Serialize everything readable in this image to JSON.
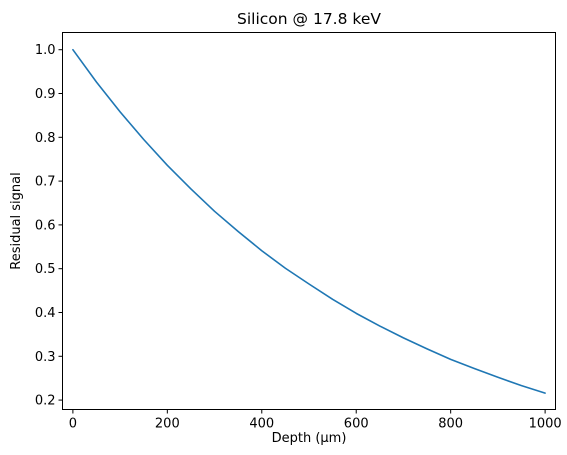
{
  "chart_data": {
    "type": "line",
    "title": "Silicon @ 17.8 keV",
    "xlabel": "Depth (µm)",
    "ylabel": "Residual signal",
    "xlim": [
      -22,
      1022
    ],
    "ylim": [
      0.1785,
      1.0393
    ],
    "xticks": [
      0,
      200,
      400,
      600,
      800,
      1000
    ],
    "yticks": [
      0.2,
      0.3,
      0.4,
      0.5,
      0.6,
      0.7,
      0.8,
      0.9,
      1.0
    ],
    "xtick_labels": [
      "0",
      "200",
      "400",
      "600",
      "800",
      "1000"
    ],
    "ytick_labels": [
      "0.2",
      "0.3",
      "0.4",
      "0.5",
      "0.6",
      "0.7",
      "0.8",
      "0.9",
      "1.0"
    ],
    "grid": false,
    "series": [
      {
        "color": "#1f77b4",
        "x": [
          0,
          50,
          100,
          150,
          200,
          250,
          300,
          350,
          400,
          450,
          500,
          550,
          600,
          650,
          700,
          750,
          800,
          850,
          900,
          950,
          1000
        ],
        "y": [
          1.0,
          0.926,
          0.858,
          0.795,
          0.736,
          0.682,
          0.631,
          0.585,
          0.541,
          0.501,
          0.465,
          0.43,
          0.398,
          0.369,
          0.342,
          0.317,
          0.293,
          0.272,
          0.252,
          0.233,
          0.216
        ]
      }
    ]
  }
}
